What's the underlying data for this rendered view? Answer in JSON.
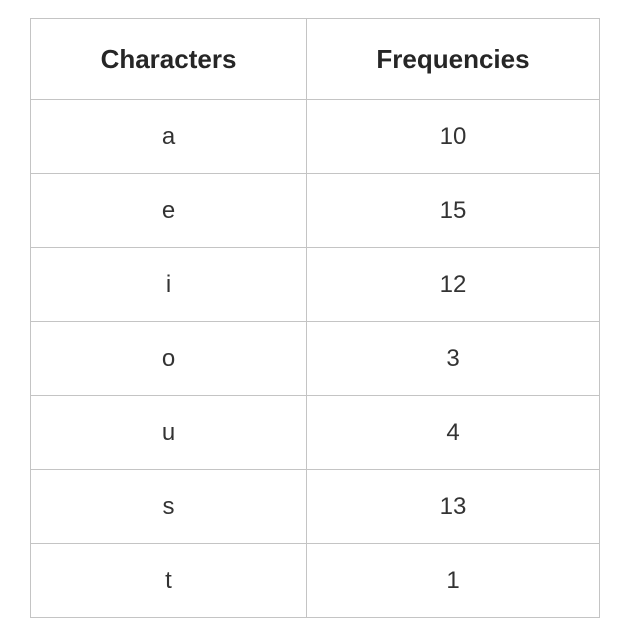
{
  "table": {
    "headers": [
      "Characters",
      "Frequencies"
    ],
    "rows": [
      {
        "character": "a",
        "frequency": "10"
      },
      {
        "character": "e",
        "frequency": "15"
      },
      {
        "character": "i",
        "frequency": "12"
      },
      {
        "character": "o",
        "frequency": "3"
      },
      {
        "character": "u",
        "frequency": "4"
      },
      {
        "character": "s",
        "frequency": "13"
      },
      {
        "character": "t",
        "frequency": "1"
      }
    ]
  }
}
